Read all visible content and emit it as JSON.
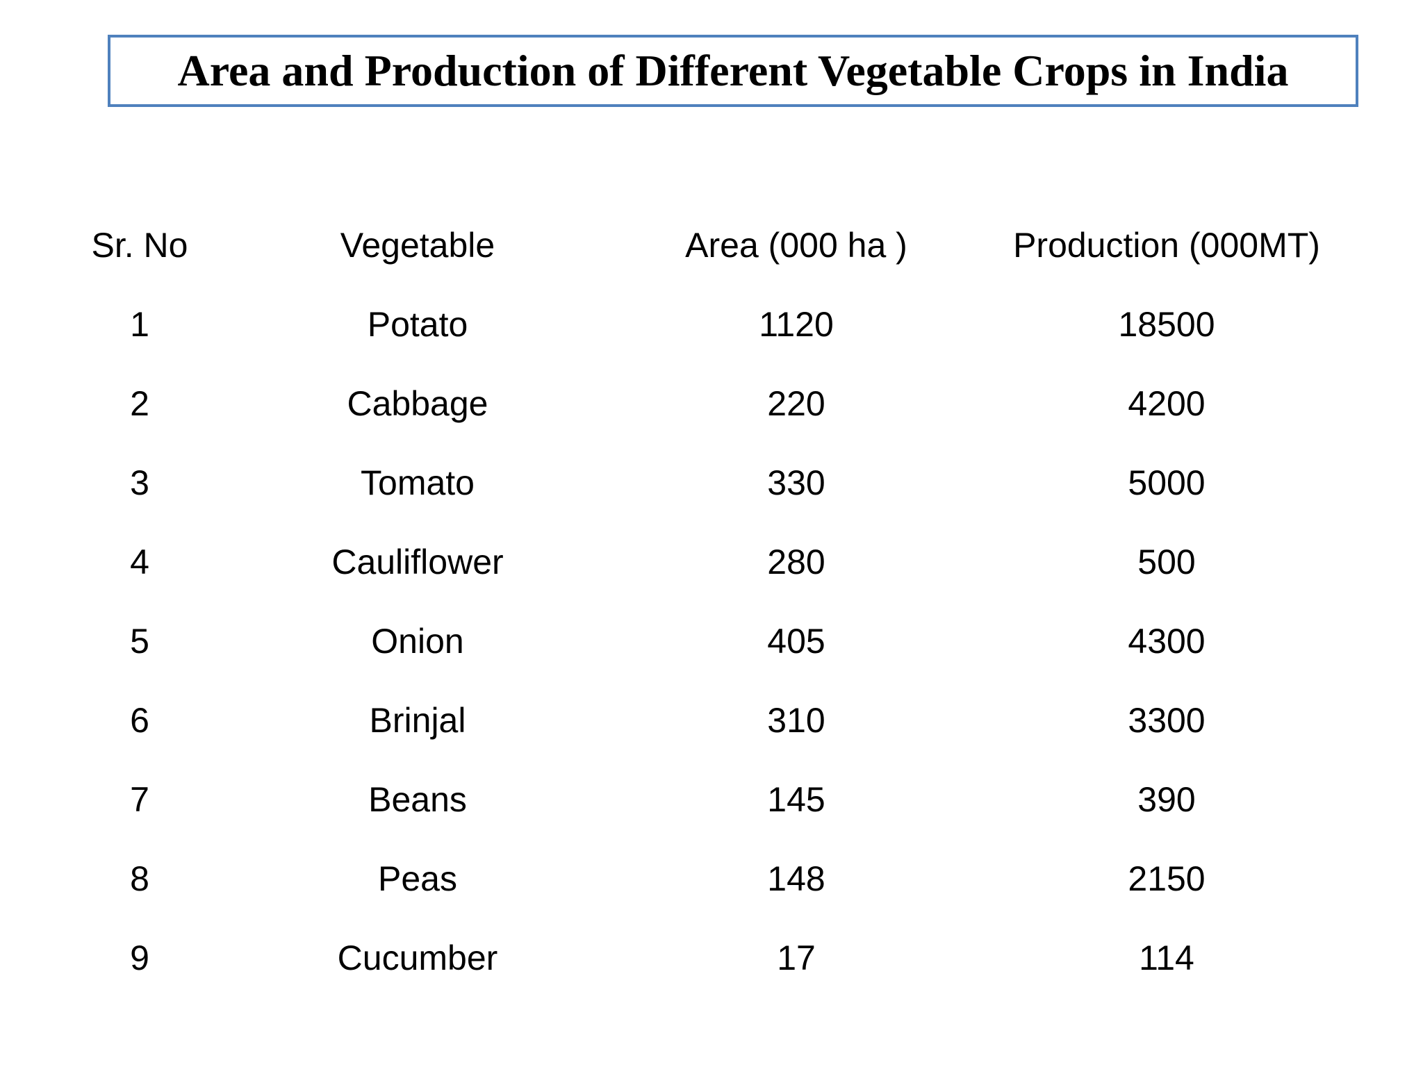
{
  "chart_data": {
    "type": "table",
    "title": "Area and Production of Different Vegetable Crops in India",
    "columns": [
      "Sr. No",
      "Vegetable",
      "Area (000 ha )",
      "Production (000MT)"
    ],
    "rows": [
      [
        "1",
        "Potato",
        "1120",
        "18500"
      ],
      [
        "2",
        "Cabbage",
        "220",
        "4200"
      ],
      [
        "3",
        "Tomato",
        "330",
        "5000"
      ],
      [
        "4",
        "Cauliflower",
        "280",
        "500"
      ],
      [
        "5",
        "Onion",
        "405",
        "4300"
      ],
      [
        "6",
        "Brinjal",
        "310",
        "3300"
      ],
      [
        "7",
        "Beans",
        "145",
        "390"
      ],
      [
        "8",
        "Peas",
        "148",
        "2150"
      ],
      [
        "9",
        "Cucumber",
        "17",
        "114"
      ]
    ]
  },
  "colors": {
    "title_border": "#4f81bd",
    "text": "#000000",
    "background": "#ffffff"
  }
}
